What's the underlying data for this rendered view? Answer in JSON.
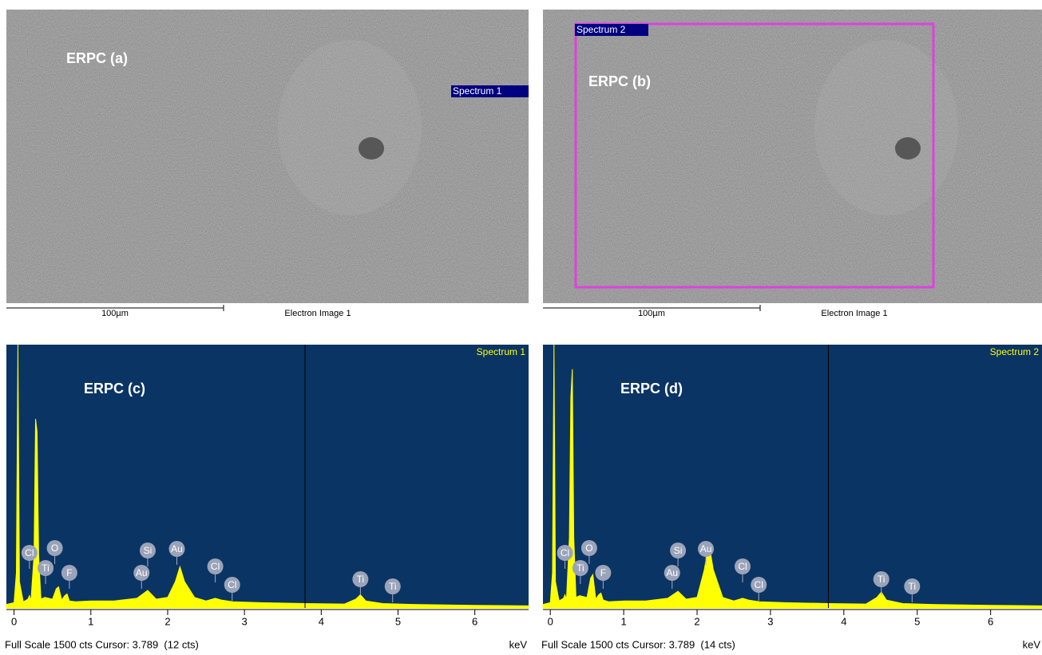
{
  "images": [
    {
      "label": "ERPC (a)",
      "spectrum_tag": "Spectrum 1",
      "scale_bar": "100µm",
      "caption": "Electron Image 1"
    },
    {
      "label": "ERPC (b)",
      "spectrum_tag": "Spectrum 2",
      "scale_bar": "100µm",
      "caption": "Electron Image 1"
    }
  ],
  "chart_data": [
    {
      "type": "area",
      "title": "Spectrum 1",
      "annotation": "ERPC (c)",
      "color": "#ffff00",
      "background": "#0a3464",
      "x": [
        -0.1,
        0.0,
        0.03,
        0.05,
        0.07,
        0.12,
        0.18,
        0.2,
        0.22,
        0.26,
        0.28,
        0.3,
        0.32,
        0.35,
        0.4,
        0.5,
        0.55,
        0.58,
        0.62,
        0.66,
        0.69,
        0.72,
        0.8,
        1.0,
        1.3,
        1.6,
        1.74,
        1.85,
        2.0,
        2.1,
        2.16,
        2.22,
        2.35,
        2.5,
        2.62,
        2.7,
        2.85,
        3.2,
        3.8,
        4.3,
        4.45,
        4.51,
        4.58,
        4.8,
        5.2,
        6.0,
        6.7
      ],
      "values": [
        20,
        30,
        200,
        1500,
        150,
        35,
        50,
        70,
        40,
        300,
        1077,
        1000,
        300,
        50,
        60,
        50,
        110,
        120,
        45,
        70,
        80,
        40,
        35,
        40,
        40,
        55,
        100,
        50,
        60,
        150,
        235,
        150,
        60,
        40,
        55,
        45,
        35,
        30,
        25,
        22,
        50,
        75,
        40,
        25,
        20,
        15,
        12
      ],
      "xlim": [
        -0.1,
        6.7
      ],
      "ylim": [
        0,
        1500
      ],
      "xticks": [
        0,
        1,
        2,
        3,
        4,
        5,
        6
      ],
      "x_label": "keV",
      "cursor": 3.789,
      "footer": "Full Scale 1500 cts Cursor: 3.789  (12 cts)",
      "peak_labels": [
        {
          "label": "Cl",
          "x": 0.2
        },
        {
          "label": "O",
          "x": 0.53
        },
        {
          "label": "Ti",
          "x": 0.41
        },
        {
          "label": "F",
          "x": 0.72
        },
        {
          "label": "Au",
          "x": 1.66
        },
        {
          "label": "Si",
          "x": 1.74
        },
        {
          "label": "Au",
          "x": 2.12
        },
        {
          "label": "Cl",
          "x": 2.62
        },
        {
          "label": "Cl",
          "x": 2.84
        },
        {
          "label": "Ti",
          "x": 4.51
        },
        {
          "label": "Ti",
          "x": 4.93
        }
      ]
    },
    {
      "type": "area",
      "title": "Spectrum 2",
      "annotation": "ERPC (d)",
      "color": "#ffff00",
      "background": "#0a3464",
      "x": [
        -0.1,
        0.0,
        0.03,
        0.05,
        0.07,
        0.12,
        0.18,
        0.2,
        0.22,
        0.26,
        0.28,
        0.3,
        0.32,
        0.35,
        0.4,
        0.5,
        0.55,
        0.58,
        0.62,
        0.66,
        0.69,
        0.72,
        0.8,
        1.0,
        1.3,
        1.6,
        1.74,
        1.85,
        2.0,
        2.1,
        2.16,
        2.22,
        2.35,
        2.5,
        2.62,
        2.7,
        2.85,
        3.2,
        3.8,
        4.3,
        4.45,
        4.51,
        4.58,
        4.8,
        5.2,
        6.0,
        6.7
      ],
      "values": [
        20,
        30,
        200,
        1500,
        150,
        40,
        55,
        75,
        45,
        400,
        1200,
        1360,
        400,
        60,
        70,
        60,
        170,
        190,
        50,
        75,
        85,
        45,
        35,
        40,
        40,
        55,
        95,
        50,
        60,
        220,
        373,
        220,
        60,
        40,
        55,
        45,
        35,
        30,
        25,
        22,
        60,
        90,
        45,
        25,
        20,
        15,
        12
      ],
      "xlim": [
        -0.1,
        6.7
      ],
      "ylim": [
        0,
        1500
      ],
      "xticks": [
        0,
        1,
        2,
        3,
        4,
        5,
        6
      ],
      "x_label": "keV",
      "cursor": 3.789,
      "footer": "Full Scale 1500 cts Cursor: 3.789  (14 cts)",
      "peak_labels": [
        {
          "label": "Cl",
          "x": 0.2
        },
        {
          "label": "O",
          "x": 0.53
        },
        {
          "label": "Ti",
          "x": 0.41
        },
        {
          "label": "F",
          "x": 0.72
        },
        {
          "label": "Au",
          "x": 1.66
        },
        {
          "label": "Si",
          "x": 1.74
        },
        {
          "label": "Au",
          "x": 2.12
        },
        {
          "label": "Cl",
          "x": 2.62
        },
        {
          "label": "Cl",
          "x": 2.84
        },
        {
          "label": "Ti",
          "x": 4.51
        },
        {
          "label": "Ti",
          "x": 4.93
        }
      ]
    }
  ]
}
